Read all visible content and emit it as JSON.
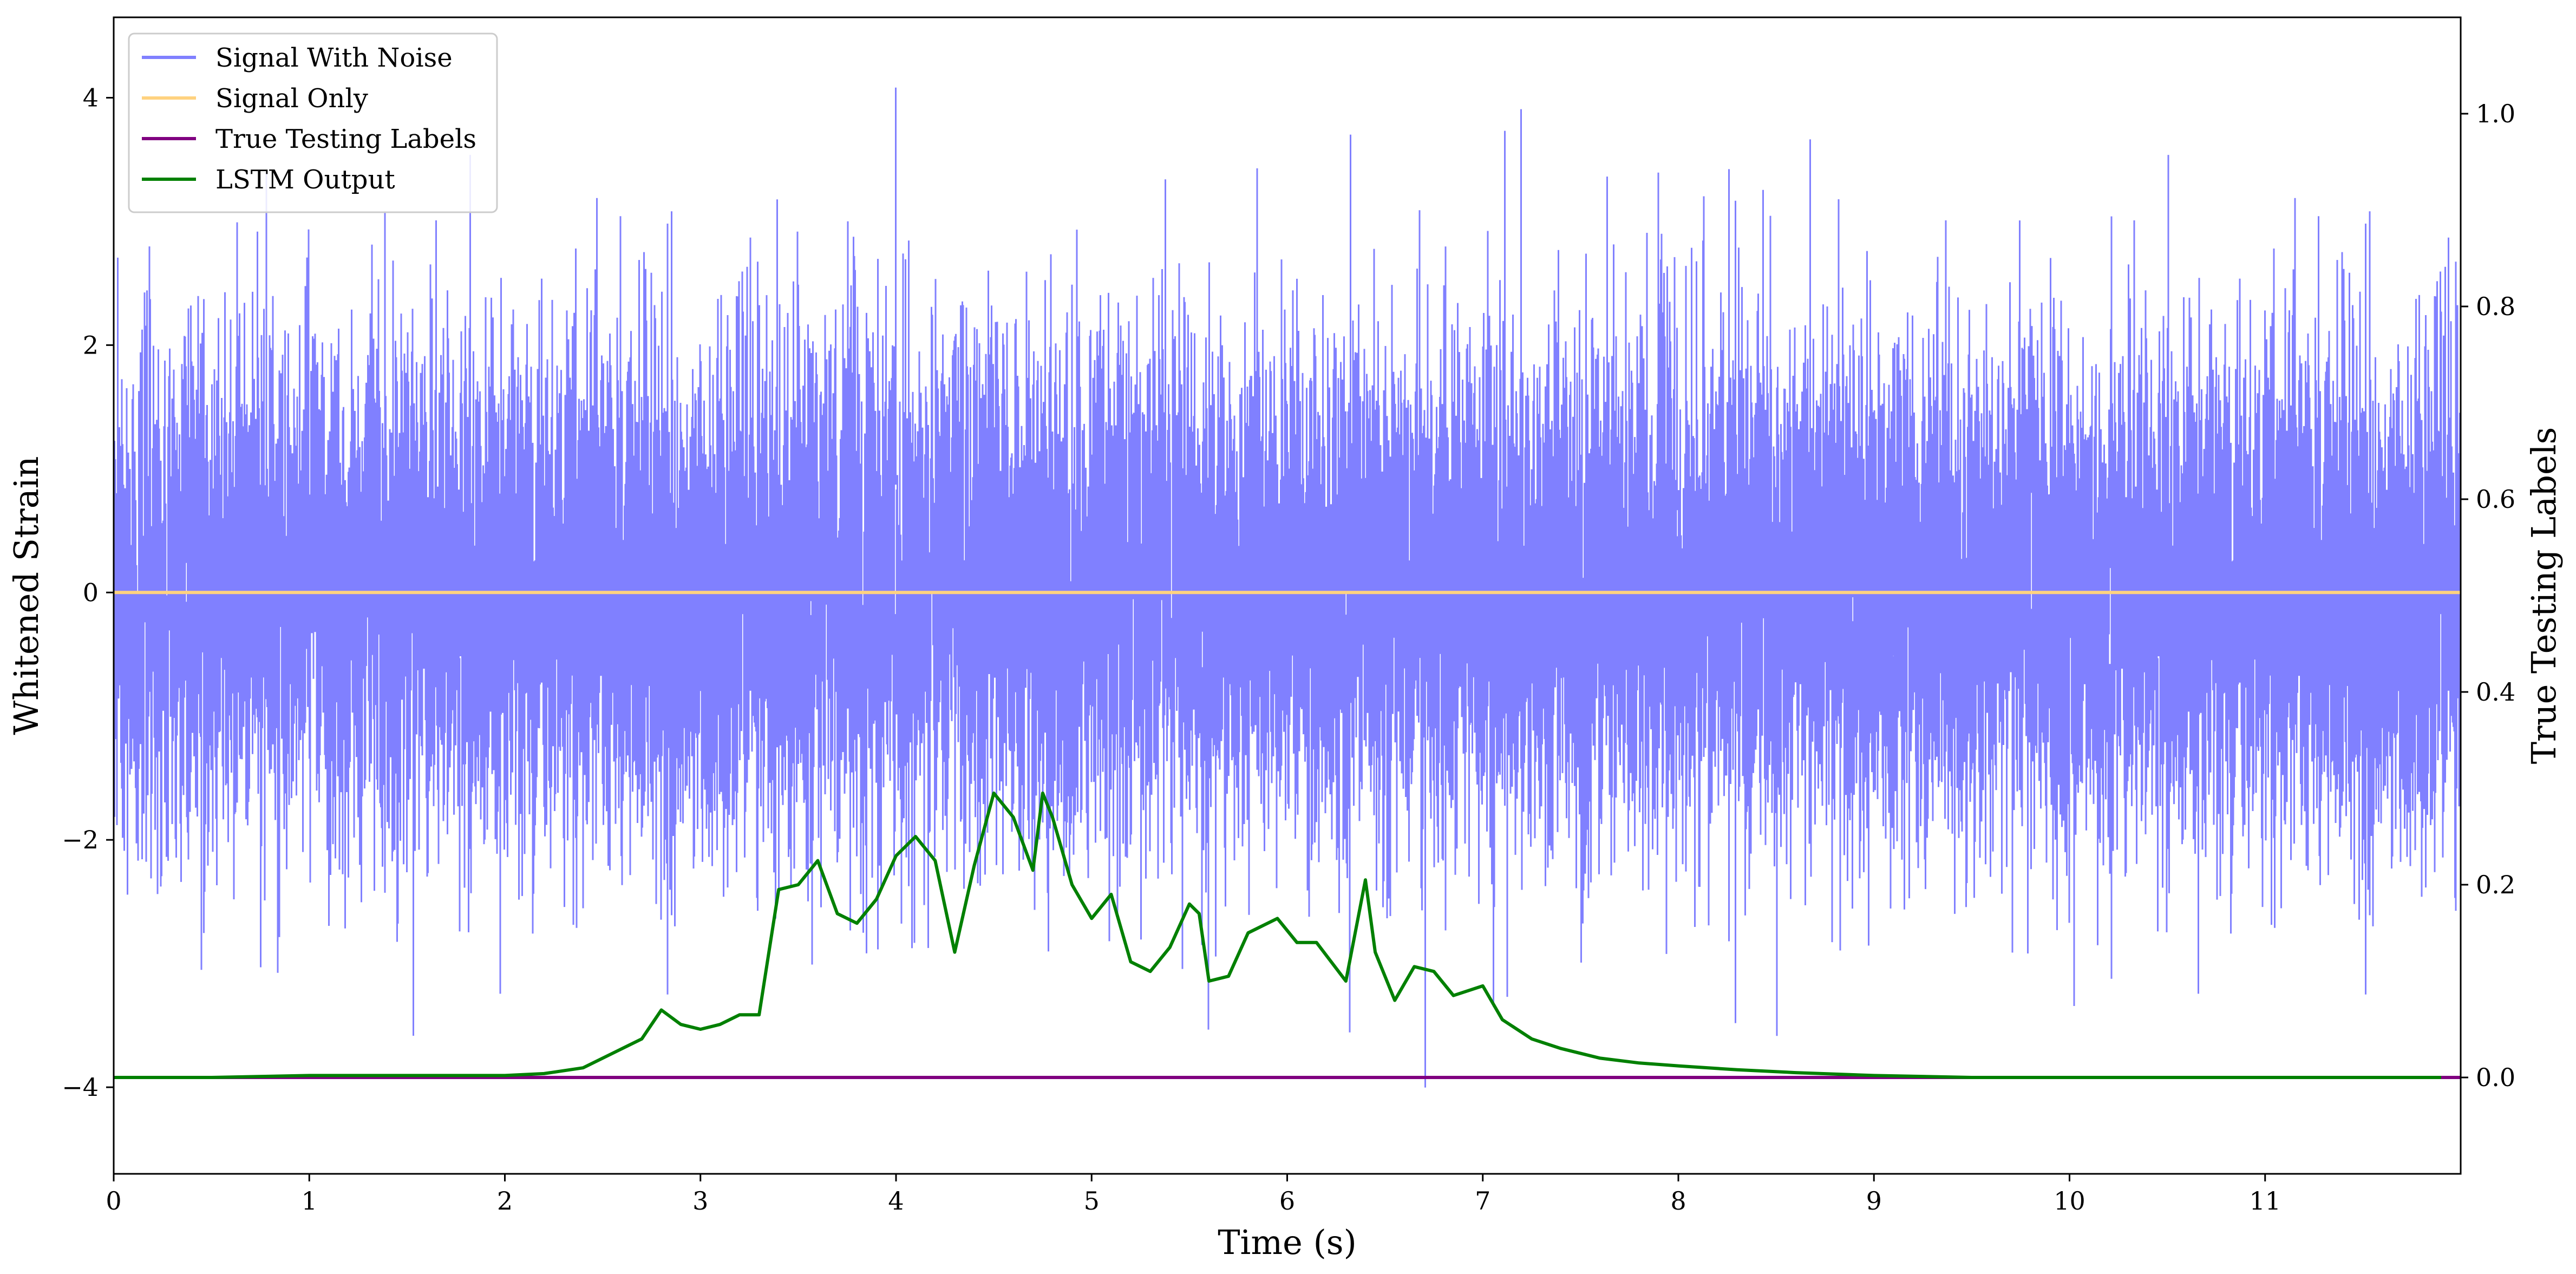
{
  "chart_data": {
    "type": "line",
    "xlabel": "Time (s)",
    "ylabel": "Whitened Strain",
    "y2label": "True Testing Labels",
    "xlim": [
      0,
      12
    ],
    "ylim": [
      -4.7,
      4.65
    ],
    "y2lim": [
      -0.1,
      1.1
    ],
    "xticks": [
      0,
      1,
      2,
      3,
      4,
      5,
      6,
      7,
      8,
      9,
      10,
      11
    ],
    "yticks": [
      -4,
      -2,
      0,
      2,
      4
    ],
    "y2ticks": [
      0.0,
      0.2,
      0.4,
      0.6,
      0.8,
      1.0
    ],
    "grid": false,
    "legend_position": "top-left",
    "series": [
      {
        "name": "Signal With Noise",
        "axis": "left",
        "color": "#8080ff",
        "description_kind": "noise",
        "envelope": {
          "typical_amplitude": 1.8,
          "max_peak": 4.25,
          "min_trough": -4.27,
          "duration_s": 12
        }
      },
      {
        "name": "Signal Only",
        "axis": "left",
        "color": "#ffd27f",
        "x": [
          0,
          12
        ],
        "y": [
          0,
          0
        ]
      },
      {
        "name": "True Testing Labels",
        "axis": "right",
        "color": "#800080",
        "x": [
          0,
          12
        ],
        "y": [
          0,
          0
        ]
      },
      {
        "name": "LSTM Output",
        "axis": "right",
        "color": "#008000",
        "x": [
          0,
          0.5,
          1.0,
          1.5,
          2.0,
          2.2,
          2.4,
          2.6,
          2.7,
          2.8,
          2.9,
          3.0,
          3.1,
          3.2,
          3.3,
          3.4,
          3.5,
          3.6,
          3.7,
          3.8,
          3.9,
          4.0,
          4.1,
          4.2,
          4.3,
          4.4,
          4.5,
          4.6,
          4.7,
          4.75,
          4.8,
          4.9,
          5.0,
          5.1,
          5.2,
          5.3,
          5.4,
          5.5,
          5.55,
          5.6,
          5.7,
          5.8,
          5.95,
          6.05,
          6.15,
          6.3,
          6.4,
          6.45,
          6.55,
          6.65,
          6.75,
          6.85,
          7.0,
          7.1,
          7.25,
          7.4,
          7.6,
          7.8,
          8.0,
          8.3,
          8.6,
          9.0,
          9.5,
          10.0,
          11.0,
          11.9
        ],
        "y": [
          0.0,
          0.0,
          0.002,
          0.002,
          0.002,
          0.004,
          0.01,
          0.03,
          0.04,
          0.07,
          0.055,
          0.05,
          0.055,
          0.065,
          0.065,
          0.195,
          0.2,
          0.225,
          0.17,
          0.16,
          0.185,
          0.23,
          0.25,
          0.225,
          0.13,
          0.22,
          0.295,
          0.27,
          0.215,
          0.295,
          0.27,
          0.2,
          0.165,
          0.19,
          0.12,
          0.11,
          0.135,
          0.18,
          0.17,
          0.1,
          0.105,
          0.15,
          0.165,
          0.14,
          0.14,
          0.1,
          0.205,
          0.13,
          0.08,
          0.115,
          0.11,
          0.085,
          0.095,
          0.06,
          0.04,
          0.03,
          0.02,
          0.015,
          0.012,
          0.008,
          0.005,
          0.002,
          0.0,
          0.0,
          0.0,
          0.0
        ]
      }
    ]
  }
}
